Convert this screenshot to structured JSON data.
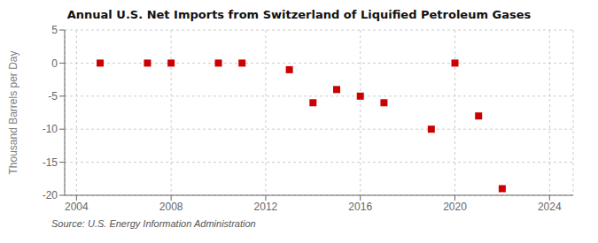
{
  "chart_data": {
    "type": "scatter",
    "title": "Annual U.S. Net Imports from Switzerland of Liquified Petroleum Gases",
    "y_label": "Thousand Barrels per Day",
    "annotations": [
      "Source: U.S. Energy Information Administration"
    ],
    "x": [
      2005,
      2007,
      2008,
      2010,
      2011,
      2013,
      2014,
      2015,
      2016,
      2017,
      2019,
      2020,
      2021,
      2022
    ],
    "values": [
      0,
      0,
      0,
      0,
      0,
      -1,
      -6,
      -4,
      -5,
      -6,
      -10,
      0,
      -8,
      -19
    ],
    "color": "#cc0000",
    "marker": "square",
    "xlim": [
      2003.5,
      2025
    ],
    "ylim": [
      -20,
      5
    ],
    "xticks": [
      2004,
      2008,
      2012,
      2016,
      2020,
      2024
    ],
    "yticks": [
      5,
      0,
      -5,
      -10,
      -15,
      -20
    ],
    "grid": true
  }
}
